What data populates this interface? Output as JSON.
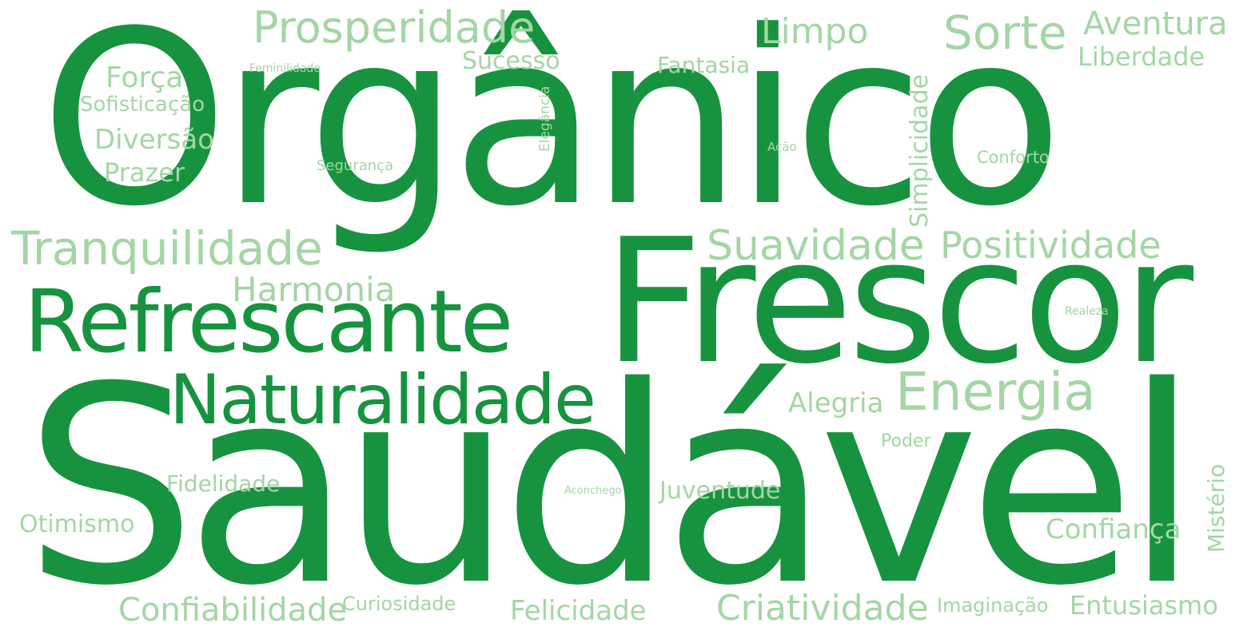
{
  "colors": {
    "primary": "#17933f",
    "secondary": "#a3d6a4",
    "background": "#ffffff"
  },
  "words": {
    "organico": "Orgânico",
    "saudavel": "Saudável",
    "frescor": "Frescor",
    "refrescante": "Refrescante",
    "naturalidade": "Naturalidade",
    "prosperidade": "Prosperidade",
    "sorte": "Sorte",
    "aventura": "Aventura",
    "liberdade": "Liberdade",
    "limpo": "Limpo",
    "sucesso": "Sucesso",
    "fantasia": "Fantasia",
    "feminilidade": "Feminilidade",
    "forca": "Força",
    "sofisticacao": "Sofisticação",
    "diversao": "Diversão",
    "prazer": "Prazer",
    "seguranca": "Segurança",
    "elegancia": "Elegância",
    "simplicidade": "Simplicidade",
    "acao": "Ação",
    "conforto": "Conforto",
    "tranquilidade": "Tranquilidade",
    "harmonia": "Harmonia",
    "suavidade": "Suavidade",
    "positividade": "Positividade",
    "realeza": "Realeza",
    "energia": "Energia",
    "alegria": "Alegria",
    "poder": "Poder",
    "fidelidade": "Fidelidade",
    "aconchego": "Aconchego",
    "juventude": "Juventude",
    "misterio": "Mistério",
    "otimismo": "Otimismo",
    "confianca": "Confiança",
    "confiabilidade": "Confiabilidade",
    "curiosidade": "Curiosidade",
    "felicidade": "Felicidade",
    "criatividade": "Criatividade",
    "imaginacao": "Imaginação",
    "entusiasmo": "Entusiasmo"
  }
}
